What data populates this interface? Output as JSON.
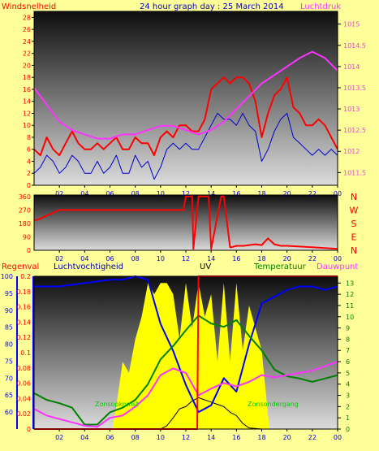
{
  "header": {
    "title": "24 hour graph day : 25 March 2014",
    "left_label": "Windsnelheid",
    "right_label": "Luchtdruk"
  },
  "colors": {
    "background": "#ffff99",
    "wind": "#ff0000",
    "gust": "#0000cc",
    "pressure": "#ff33ff",
    "humidity": "#0000ff",
    "temperature": "#008000",
    "dew": "#ff33ff",
    "solar": "#ffff00",
    "uv": "#000000",
    "rain": "#ff0000",
    "axis_blue": "#0000ff"
  },
  "chart_data": [
    {
      "type": "line",
      "name": "wind-pressure",
      "x_ticks": [
        "02",
        "04",
        "06",
        "08",
        "10",
        "12",
        "14",
        "16",
        "18",
        "20",
        "22",
        "00"
      ],
      "y_left_ticks": [
        0,
        2,
        4,
        6,
        8,
        10,
        12,
        14,
        16,
        18,
        20,
        22,
        24,
        26,
        28
      ],
      "y_left_range": [
        0,
        29
      ],
      "y_right_ticks": [
        1011.5,
        1012,
        1012.5,
        1013,
        1013.5,
        1014,
        1014.5,
        1015
      ],
      "y_right_range": [
        1011.2,
        1015.3
      ],
      "wind_x": [
        0,
        0.5,
        1,
        1.5,
        2,
        2.5,
        3,
        3.5,
        4,
        4.5,
        5,
        5.5,
        6,
        6.5,
        7,
        7.5,
        8,
        8.5,
        9,
        9.5,
        10,
        10.5,
        11,
        11.5,
        12,
        12.5,
        13,
        13.5,
        14,
        14.5,
        15,
        15.5,
        16,
        16.5,
        17,
        17.5,
        18,
        18.5,
        19,
        19.5,
        20,
        20.5,
        21,
        21.5,
        22,
        22.5,
        23,
        23.5,
        24
      ],
      "wind_y": [
        6,
        5,
        8,
        6,
        5,
        7,
        9,
        7,
        6,
        6,
        7,
        6,
        7,
        8,
        6,
        6,
        8,
        7,
        7,
        5,
        8,
        9,
        8,
        10,
        10,
        9,
        9,
        11,
        16,
        17,
        18,
        17,
        18,
        18,
        17,
        14,
        8,
        12,
        15,
        16,
        18,
        13,
        12,
        10,
        10,
        11,
        10,
        8,
        6
      ],
      "gust_y": [
        2,
        3,
        5,
        4,
        2,
        3,
        5,
        4,
        2,
        2,
        4,
        2,
        3,
        5,
        2,
        2,
        5,
        3,
        4,
        1,
        3,
        6,
        7,
        6,
        7,
        6,
        6,
        8,
        10,
        12,
        11,
        11,
        10,
        12,
        10,
        9,
        4,
        6,
        9,
        11,
        12,
        8,
        7,
        6,
        5,
        6,
        5,
        6,
        5
      ],
      "pressure_x": [
        0,
        1,
        2,
        3,
        4,
        5,
        6,
        7,
        8,
        9,
        10,
        11,
        12,
        13,
        14,
        15,
        16,
        17,
        18,
        19,
        20,
        21,
        22,
        23,
        24
      ],
      "pressure_y": [
        1013.5,
        1013.1,
        1012.7,
        1012.5,
        1012.4,
        1012.3,
        1012.3,
        1012.4,
        1012.4,
        1012.5,
        1012.6,
        1012.6,
        1012.5,
        1012.4,
        1012.5,
        1012.7,
        1013.0,
        1013.3,
        1013.6,
        1013.8,
        1014.0,
        1014.2,
        1014.35,
        1014.2,
        1013.9
      ]
    },
    {
      "type": "line",
      "name": "wind-direction",
      "left_ticks": [
        0,
        90,
        180,
        270,
        360
      ],
      "y_range": [
        0,
        370
      ],
      "right_labels": [
        "N",
        "W",
        "S",
        "E",
        "N"
      ],
      "x": [
        0,
        0.3,
        2,
        4,
        6,
        8,
        10,
        11.8,
        12,
        12.5,
        12.6,
        13,
        13.8,
        14,
        14.8,
        15,
        15.5,
        15.6,
        16,
        16.5,
        16.6,
        17,
        17.5,
        18,
        18.5,
        19,
        19.5,
        20,
        21,
        22,
        23,
        24
      ],
      "y": [
        200,
        205,
        270,
        270,
        270,
        270,
        270,
        270,
        360,
        360,
        10,
        360,
        360,
        10,
        360,
        360,
        20,
        20,
        30,
        30,
        30,
        35,
        40,
        35,
        80,
        40,
        30,
        30,
        25,
        20,
        15,
        10
      ]
    },
    {
      "type": "line",
      "name": "humidity-temp-uv-solar",
      "legend": [
        "Regenval",
        "Luchtvochtigheid",
        "UV",
        "Temperatuur",
        "Dauwpunt"
      ],
      "annotations": [
        "Zonsopkomst",
        "Zonsondergang"
      ],
      "x_ticks": [
        "02",
        "04",
        "06",
        "08",
        "10",
        "12",
        "14",
        "16",
        "18",
        "20",
        "22",
        "00"
      ],
      "rain_ticks": [
        0,
        0.02,
        0.04,
        0.06,
        0.08,
        0.1,
        0.12,
        0.14,
        0.16,
        0.18,
        0.2
      ],
      "humidity_ticks": [
        60,
        65,
        70,
        75,
        80,
        85,
        90,
        95,
        100
      ],
      "uv_ticks": [
        0,
        1,
        2,
        3,
        4,
        5,
        6,
        7,
        8,
        9,
        10,
        11,
        12,
        13
      ],
      "humidity_x": [
        0,
        1,
        2,
        3,
        4,
        5,
        6,
        7,
        8,
        9,
        10,
        11,
        12,
        13,
        14,
        15,
        16,
        17,
        18,
        19,
        20,
        21,
        22,
        23,
        24
      ],
      "humidity_y": [
        97,
        97,
        97,
        97.5,
        98,
        98.5,
        99,
        99,
        100,
        99,
        86,
        78,
        68,
        60,
        62,
        70,
        66,
        80,
        92,
        94,
        96,
        97,
        97,
        96,
        97
      ],
      "temp_x": [
        0,
        1,
        2,
        3,
        4,
        5,
        6,
        7,
        8,
        9,
        10,
        11,
        12,
        13,
        14,
        15,
        16,
        17,
        18,
        19,
        20,
        21,
        22,
        23,
        24
      ],
      "temp_y": [
        3.2,
        2.6,
        2.3,
        1.9,
        0.4,
        0.4,
        1.5,
        1.9,
        2.6,
        4,
        6.2,
        7.4,
        8.8,
        10.1,
        9.4,
        9.1,
        9.7,
        8.3,
        7,
        5.3,
        4.7,
        4.5,
        4.2,
        4.5,
        4.8
      ],
      "dew_x": [
        0,
        1,
        2,
        3,
        4,
        5,
        6,
        7,
        8,
        9,
        10,
        11,
        12,
        13,
        14,
        15,
        16,
        17,
        18,
        19,
        20,
        21,
        22,
        23,
        24
      ],
      "dew_y": [
        1.8,
        1.2,
        0.9,
        0.6,
        0.3,
        0.2,
        1,
        1.2,
        2,
        3,
        4.8,
        5.4,
        5,
        3,
        3.6,
        4.1,
        3.8,
        4.2,
        4.8,
        4.6,
        4.8,
        5,
        5.2,
        5.6,
        6
      ],
      "uv_x": [
        0,
        6,
        7,
        8,
        9,
        10,
        10.5,
        11,
        11.5,
        12,
        12.5,
        13,
        13.5,
        14,
        14.5,
        15,
        15.5,
        16,
        16.5,
        17,
        18,
        24
      ],
      "uv_y": [
        0,
        0,
        0,
        0,
        0,
        0,
        0.3,
        1,
        1.8,
        2,
        2.5,
        2.8,
        2.6,
        2.4,
        2.2,
        2,
        1.5,
        1.2,
        0.5,
        0.1,
        0,
        0
      ],
      "solar_x": [
        0,
        6.2,
        6.5,
        7,
        7.5,
        8,
        8.5,
        9,
        9.5,
        10,
        10.5,
        11,
        11.5,
        12,
        12.5,
        13,
        13.5,
        14,
        14.5,
        15,
        15.5,
        16,
        16.5,
        17,
        17.5,
        18,
        18.6,
        24
      ],
      "solar_y": [
        0,
        0,
        2,
        6,
        5,
        8,
        10,
        13,
        12,
        13,
        13,
        12,
        8,
        13,
        9,
        13,
        10,
        12,
        6,
        13,
        6,
        13,
        7,
        11,
        9,
        7,
        0,
        0
      ],
      "rain_x": [
        0,
        12.9,
        13,
        24
      ],
      "rain_y": [
        0,
        0,
        0.2,
        0.2
      ]
    }
  ]
}
